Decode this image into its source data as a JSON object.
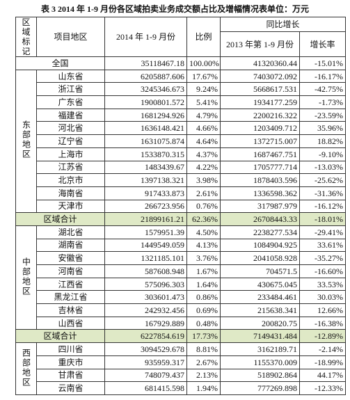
{
  "title": "表 3 2014 年 1-9 月份各区域拍卖业务成交额占比及增幅情况表单位：万元",
  "header": {
    "region": "区域标记",
    "area": "项目地区",
    "y2014": "2014 年 1-9 月份",
    "ratio": "比例",
    "yoy": "同比增长",
    "y2013": "2013 年第 1-9 月份",
    "growth": "增长率"
  },
  "national": [
    "全国",
    "35118467.18",
    "100.00%",
    "41320360.44",
    "-15.01%"
  ],
  "regions": [
    {
      "label": "东部地区",
      "rows": [
        [
          "山东省",
          "6205887.606",
          "17.67%",
          "7403072.092",
          "-16.17%"
        ],
        [
          "浙江省",
          "3245346.673",
          "9.24%",
          "5668617.531",
          "-42.75%"
        ],
        [
          "广东省",
          "1900801.572",
          "5.41%",
          "1934177.259",
          "-1.73%"
        ],
        [
          "福建省",
          "1681294.926",
          "4.79%",
          "2200216.322",
          "-23.59%"
        ],
        [
          "河北省",
          "1636148.421",
          "4.66%",
          "1203409.712",
          "35.96%"
        ],
        [
          "辽宁省",
          "1631075.874",
          "4.64%",
          "1372715.007",
          "18.82%"
        ],
        [
          "上海市",
          "1533870.315",
          "4.37%",
          "1687467.751",
          "-9.10%"
        ],
        [
          "江苏省",
          "1483439.67",
          "4.22%",
          "1705777.714",
          "-13.03%"
        ],
        [
          "北京市",
          "1397138.321",
          "3.98%",
          "1878403.596",
          "-25.62%"
        ],
        [
          "海南省",
          "917433.873",
          "2.61%",
          "1336598.362",
          "-31.36%"
        ],
        [
          "天津市",
          "266723.956",
          "0.76%",
          "317987.979",
          "-16.12%"
        ]
      ],
      "total": [
        "区域合计",
        "21899161.21",
        "62.36%",
        "26708443.33",
        "-18.01%"
      ]
    },
    {
      "label": "中部地区",
      "rows": [
        [
          "湖北省",
          "1579951.39",
          "4.50%",
          "2238277.534",
          "-29.41%"
        ],
        [
          "湖南省",
          "1449549.059",
          "4.13%",
          "1084904.925",
          "33.61%"
        ],
        [
          "安徽省",
          "1321185.101",
          "3.76%",
          "2041058.928",
          "-35.27%"
        ],
        [
          "河南省",
          "587608.948",
          "1.67%",
          "704571.5",
          "-16.60%"
        ],
        [
          "江西省",
          "575096.303",
          "1.64%",
          "430675.045",
          "33.53%"
        ],
        [
          "黑龙江省",
          "303601.473",
          "0.86%",
          "233484.461",
          "30.03%"
        ],
        [
          "吉林省",
          "242932.456",
          "0.69%",
          "215638.341",
          "12.66%"
        ],
        [
          "山西省",
          "167929.889",
          "0.48%",
          "200820.75",
          "-16.38%"
        ]
      ],
      "total": [
        "区域合计",
        "6227854.619",
        "17.73%",
        "7149431.484",
        "-12.89%"
      ]
    },
    {
      "label": "西部地区",
      "rows": [
        [
          "四川省",
          "3094529.678",
          "8.81%",
          "3162189.71",
          "-2.14%"
        ],
        [
          "重庆市",
          "935959.317",
          "2.67%",
          "1155370.009",
          "-18.99%"
        ],
        [
          "甘肃省",
          "748079.437",
          "2.13%",
          "518902.864",
          "44.17%"
        ],
        [
          "云南省",
          "681415.598",
          "1.94%",
          "777269.898",
          "-12.33%"
        ]
      ]
    }
  ]
}
